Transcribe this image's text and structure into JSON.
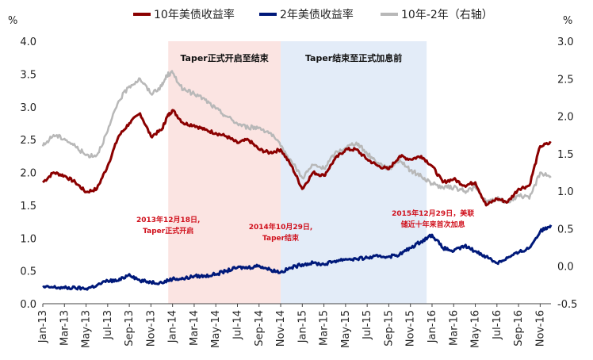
{
  "chart_data": {
    "type": "line",
    "legend": [
      {
        "label": "10年美债收益率",
        "color": "#8B0000"
      },
      {
        "label": "2年美债收益率",
        "color": "#00197a"
      },
      {
        "label": "10年-2年（右轴）",
        "color": "#b8b8b8"
      }
    ],
    "left_axis": {
      "unit": "%",
      "ylim": [
        0,
        4.0
      ],
      "ticks": [
        "0.0",
        "0.5",
        "1.0",
        "1.5",
        "2.0",
        "2.5",
        "3.0",
        "3.5",
        "4.0"
      ]
    },
    "right_axis": {
      "unit": "%",
      "ylim": [
        -0.5,
        3.0
      ],
      "ticks": [
        "-0.5",
        "0.0",
        "0.5",
        "1.0",
        "1.5",
        "2.0",
        "2.5",
        "3.0"
      ]
    },
    "x_tick_labels": [
      "Jan-13",
      "Mar-13",
      "May-13",
      "Jul-13",
      "Sep-13",
      "Nov-13",
      "Jan-14",
      "Mar-14",
      "May-14",
      "Jul-14",
      "Sep-14",
      "Nov-14",
      "Jan-15",
      "Mar-15",
      "May-15",
      "Jul-15",
      "Sep-15",
      "Nov-15",
      "Jan-16",
      "Mar-16",
      "May-16",
      "Jul-16",
      "Sep-16",
      "Nov-16"
    ],
    "shaded_periods": [
      {
        "label": "Taper正式开启至结束",
        "start": 11.6,
        "end": 22.0,
        "color": "#fbe4e2"
      },
      {
        "label": "Taper结束至正式加息前",
        "start": 22.0,
        "end": 35.5,
        "color": "#e3ecf8"
      }
    ],
    "annotations": [
      {
        "lines": [
          "2013年12月18日,",
          "Taper正式开启"
        ],
        "x": 11.6
      },
      {
        "lines": [
          "2014年10月29日,",
          "Taper结束"
        ],
        "x": 22.0
      },
      {
        "lines": [
          "2015年12月29日，美联",
          "储近十年来首次加息"
        ],
        "x": 35.5
      }
    ],
    "series": [
      {
        "name": "10年美债收益率",
        "axis": "left",
        "color": "#8B0000",
        "x": [
          0,
          1,
          2,
          3,
          4,
          5,
          6,
          7,
          8,
          9,
          10,
          11,
          11.5,
          12,
          13,
          14,
          15,
          16,
          17,
          18,
          19,
          20,
          21,
          22,
          23,
          24,
          25,
          26,
          27,
          28,
          29,
          30,
          31,
          32,
          33,
          34,
          35,
          36,
          37,
          38,
          39,
          40,
          41,
          42,
          43,
          44,
          45,
          46,
          47
        ],
        "values": [
          1.85,
          2.0,
          1.95,
          1.85,
          1.7,
          1.75,
          2.1,
          2.55,
          2.75,
          2.9,
          2.55,
          2.65,
          2.85,
          2.95,
          2.75,
          2.72,
          2.65,
          2.6,
          2.55,
          2.45,
          2.5,
          2.35,
          2.3,
          2.35,
          2.1,
          1.75,
          2.0,
          1.95,
          2.2,
          2.35,
          2.35,
          2.2,
          2.1,
          2.05,
          2.25,
          2.2,
          2.25,
          2.1,
          1.85,
          1.9,
          1.8,
          1.85,
          1.5,
          1.6,
          1.55,
          1.75,
          1.8,
          2.4,
          2.45
        ]
      },
      {
        "name": "2年美债收益率",
        "axis": "left",
        "color": "#00197a",
        "x": [
          0,
          1,
          2,
          3,
          4,
          5,
          6,
          7,
          8,
          9,
          10,
          11,
          12,
          13,
          14,
          15,
          16,
          17,
          18,
          19,
          20,
          21,
          22,
          23,
          24,
          25,
          26,
          27,
          28,
          29,
          30,
          31,
          32,
          33,
          34,
          35,
          36,
          37,
          38,
          39,
          40,
          41,
          42,
          43,
          44,
          45,
          46,
          47
        ],
        "values": [
          0.25,
          0.25,
          0.24,
          0.24,
          0.23,
          0.28,
          0.35,
          0.35,
          0.45,
          0.35,
          0.33,
          0.32,
          0.38,
          0.38,
          0.42,
          0.42,
          0.45,
          0.5,
          0.55,
          0.55,
          0.58,
          0.52,
          0.48,
          0.55,
          0.6,
          0.62,
          0.6,
          0.65,
          0.68,
          0.68,
          0.7,
          0.72,
          0.72,
          0.75,
          0.85,
          0.95,
          1.05,
          0.85,
          0.8,
          0.88,
          0.8,
          0.72,
          0.62,
          0.7,
          0.78,
          0.85,
          1.1,
          1.2
        ]
      },
      {
        "name": "10年-2年（右轴）",
        "axis": "right",
        "color": "#b8b8b8",
        "x": [
          0,
          1,
          2,
          3,
          4,
          5,
          6,
          7,
          8,
          9,
          10,
          11,
          11.5,
          12,
          13,
          14,
          15,
          16,
          17,
          18,
          19,
          20,
          21,
          22,
          23,
          24,
          25,
          26,
          27,
          28,
          29,
          30,
          31,
          32,
          33,
          34,
          35,
          36,
          37,
          38,
          39,
          40,
          41,
          42,
          43,
          44,
          45,
          46,
          47
        ],
        "values": [
          1.6,
          1.75,
          1.7,
          1.6,
          1.48,
          1.48,
          1.8,
          2.2,
          2.4,
          2.5,
          2.3,
          2.4,
          2.55,
          2.58,
          2.35,
          2.3,
          2.22,
          2.1,
          2.0,
          1.9,
          1.85,
          1.85,
          1.78,
          1.6,
          1.4,
          1.18,
          1.35,
          1.3,
          1.5,
          1.58,
          1.65,
          1.5,
          1.38,
          1.3,
          1.42,
          1.28,
          1.2,
          1.1,
          1.05,
          1.05,
          1.0,
          1.05,
          0.85,
          0.9,
          0.85,
          0.95,
          0.9,
          1.25,
          1.2
        ]
      }
    ]
  }
}
